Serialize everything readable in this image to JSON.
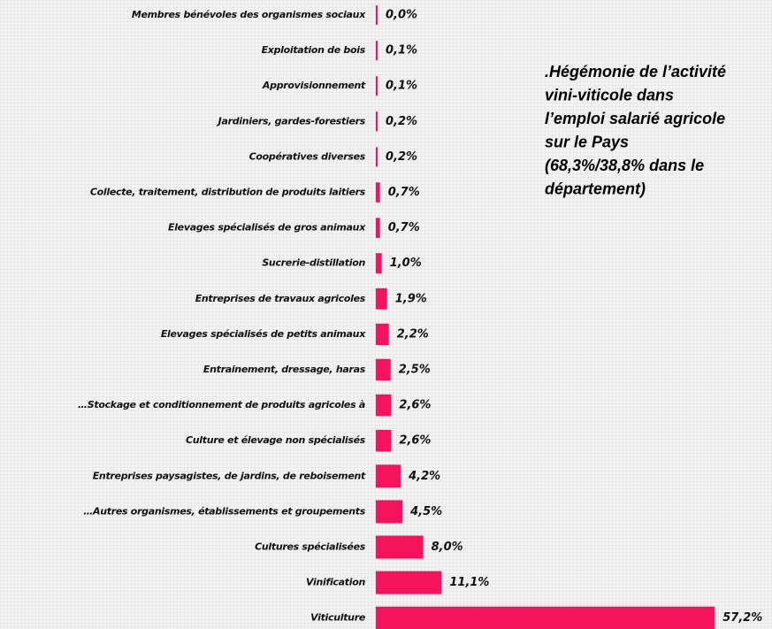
{
  "chart_data": {
    "type": "bar",
    "orientation": "horizontal",
    "color": "#f5135e",
    "categories": [
      "Membres bénévoles des organismes sociaux",
      "Exploitation de bois",
      "Approvisionnement",
      "Jardiniers, gardes-forestiers",
      "Coopératives diverses",
      "Collecte, traitement, distribution de produits laitiers",
      "Elevages spécialisés de gros animaux",
      "Sucrerie-distillation",
      "Entreprises de travaux agricoles",
      "Elevages spécialisés de petits animaux",
      "Entrainement, dressage, haras",
      "…Stockage et conditionnement de produits agricoles à",
      "Culture et élevage non spécialisés",
      "Entreprises paysagistes, de jardins, de reboisement",
      "…Autres organismes, établissements et groupements",
      "Cultures spécialisées",
      "Vinification",
      "Viticulture"
    ],
    "values": [
      0.0,
      0.1,
      0.1,
      0.2,
      0.2,
      0.7,
      0.7,
      1.0,
      1.9,
      2.2,
      2.5,
      2.6,
      2.6,
      4.2,
      4.5,
      8.0,
      11.1,
      57.2
    ],
    "value_labels": [
      "0,0%",
      "0,1%",
      "0,1%",
      "0,2%",
      "0,2%",
      "0,7%",
      "0,7%",
      "1,0%",
      "1,9%",
      "2,2%",
      "2,5%",
      "2,6%",
      "2,6%",
      "4,2%",
      "4,5%",
      "8,0%",
      "11,1%",
      "57,2%"
    ],
    "annotation": [
      ".Hégémonie de l’activité",
      "vini-viticole dans",
      "l’emploi salarié agricole",
      "sur le Pays",
      "(68,3%/38,8% dans le",
      "département)"
    ]
  }
}
